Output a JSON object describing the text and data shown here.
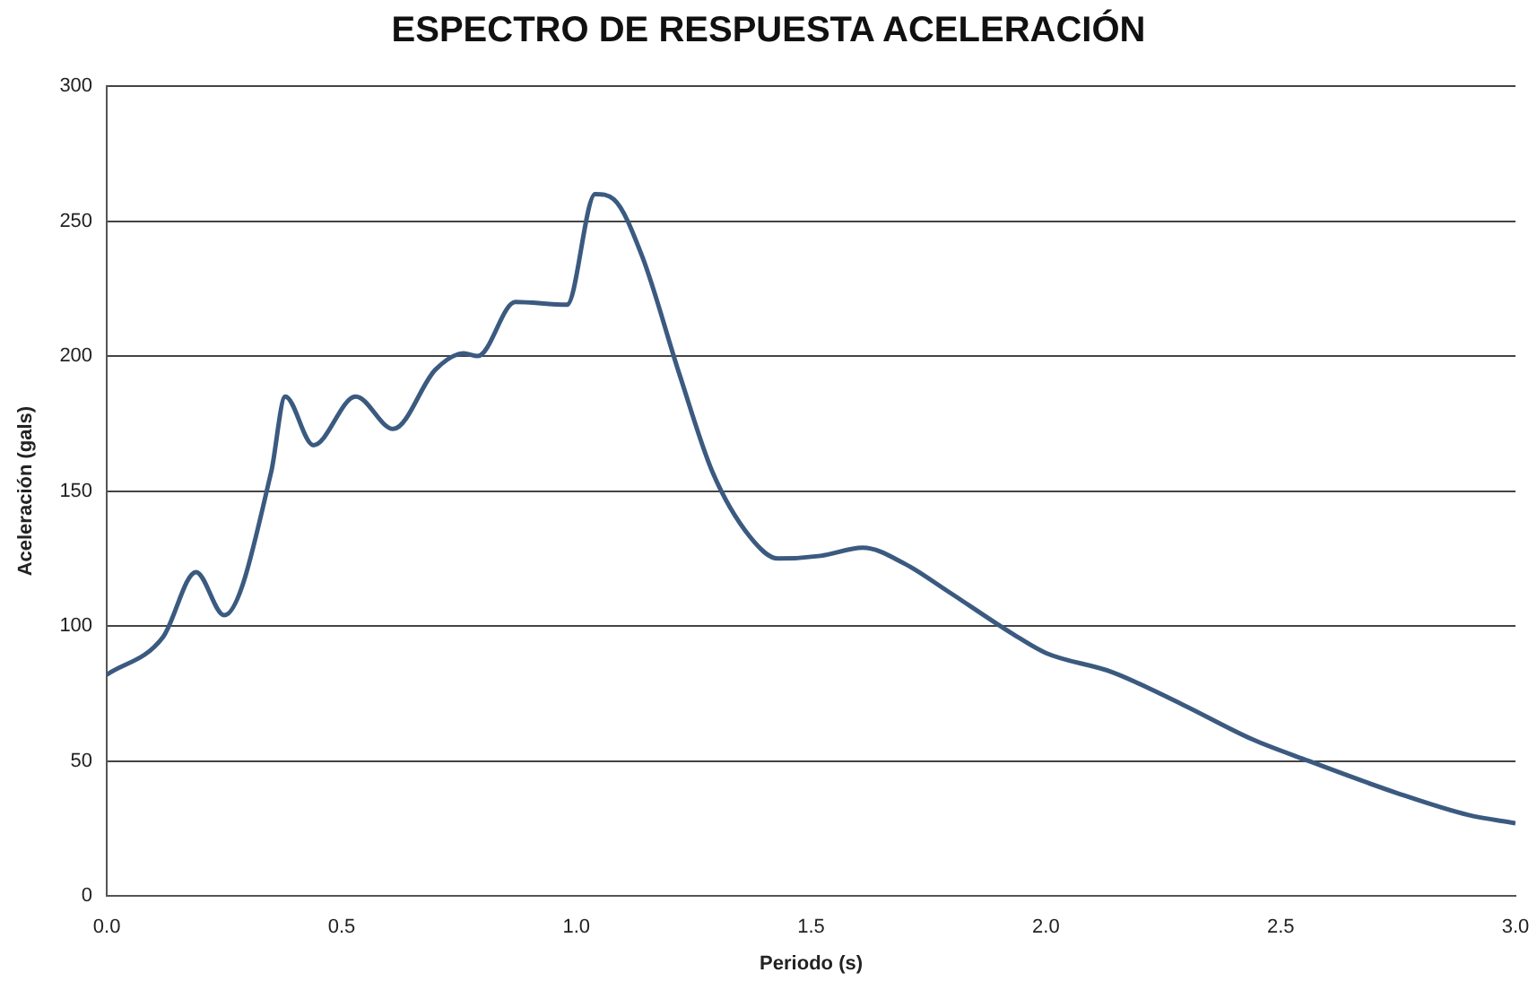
{
  "chart_data": {
    "type": "line",
    "title": "ESPECTRO DE RESPUESTA ACELERACIÓN",
    "xlabel": "Periodo (s)",
    "ylabel": "Aceleración (gals)",
    "x": [
      0,
      0.12,
      0.19,
      0.25,
      0.35,
      0.38,
      0.44,
      0.53,
      0.61,
      0.7,
      0.76,
      0.79,
      0.87,
      0.98,
      1.04,
      1.08,
      1.14,
      1.22,
      1.29,
      1.37,
      1.43,
      1.52,
      1.61,
      1.7,
      1.79,
      1.93,
      2.0,
      2.14,
      2.29,
      2.44,
      2.56,
      2.75,
      2.9,
      3.0
    ],
    "series": [
      {
        "color": "#3b5a80",
        "values": [
          82,
          96,
          120,
          104,
          157,
          185,
          167,
          185,
          173,
          195,
          201,
          200,
          220,
          219,
          260,
          258,
          237,
          193,
          157,
          133,
          125,
          126,
          129,
          123,
          113,
          97,
          90,
          83,
          71,
          58,
          50,
          38,
          30,
          27
        ]
      }
    ],
    "xlim": [
      0,
      3
    ],
    "xticks": [
      {
        "value": 0,
        "label": "0.0"
      },
      {
        "value": 0.5,
        "label": "0.5"
      },
      {
        "value": 1,
        "label": "1.0"
      },
      {
        "value": 1.5,
        "label": "1.5"
      },
      {
        "value": 2,
        "label": "2.0"
      },
      {
        "value": 2.5,
        "label": "2.5"
      },
      {
        "value": 3,
        "label": "3.0"
      }
    ],
    "ylim": [
      0,
      300
    ],
    "yticks": [
      0,
      50,
      100,
      150,
      200,
      250,
      300
    ],
    "grid": "y",
    "legend": false,
    "marker": "none",
    "line_style": "solid"
  }
}
